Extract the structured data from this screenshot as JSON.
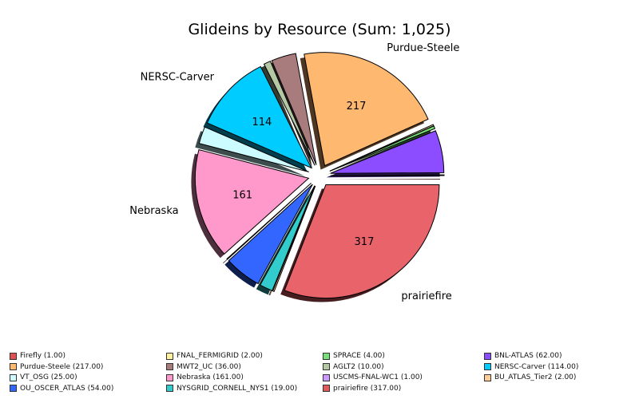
{
  "chart_data": {
    "type": "pie",
    "title": "Glideins by Resource (Sum: 1,025)",
    "slices": [
      {
        "label": "Firefly",
        "value": 1,
        "legend": "Firefly (1.00)",
        "color": "#e05050",
        "outer_label": "",
        "inner_label": ""
      },
      {
        "label": "BNL-ATLAS",
        "value": 62,
        "legend": "BNL-ATLAS (62.00)",
        "color": "#8c4cff",
        "outer_label": "",
        "inner_label": ""
      },
      {
        "label": "SPRACE",
        "value": 4,
        "legend": "SPRACE (4.00)",
        "color": "#78e078",
        "outer_label": "",
        "inner_label": ""
      },
      {
        "label": "FNAL_FERMIGRID",
        "value": 2,
        "legend": "FNAL_FERMIGRID (2.00)",
        "color": "#fff0a0",
        "outer_label": "",
        "inner_label": ""
      },
      {
        "label": "Purdue-Steele",
        "value": 217,
        "legend": "Purdue-Steele (217.00)",
        "color": "#ffb870",
        "outer_label": "Purdue-Steele",
        "inner_label": "217"
      },
      {
        "label": "MWT2_UC",
        "value": 36,
        "legend": "MWT2_UC (36.00)",
        "color": "#a87c7c",
        "outer_label": "",
        "inner_label": ""
      },
      {
        "label": "AGLT2",
        "value": 10,
        "legend": "AGLT2 (10.00)",
        "color": "#b4c8a4",
        "outer_label": "",
        "inner_label": ""
      },
      {
        "label": "NERSC-Carver",
        "value": 114,
        "legend": "NERSC-Carver (114.00)",
        "color": "#00ccff",
        "outer_label": "NERSC-Carver",
        "inner_label": "114"
      },
      {
        "label": "VT_OSG",
        "value": 25,
        "legend": "VT_OSG (25.00)",
        "color": "#ccfcff",
        "outer_label": "",
        "inner_label": ""
      },
      {
        "label": "Nebraska",
        "value": 161,
        "legend": "Nebraska (161.00)",
        "color": "#ff99cc",
        "outer_label": "Nebraska",
        "inner_label": "161"
      },
      {
        "label": "USCMS-FNAL-WC1",
        "value": 1,
        "legend": "USCMS-FNAL-WC1 (1.00)",
        "color": "#cc99ff",
        "outer_label": "",
        "inner_label": ""
      },
      {
        "label": "OU_OSCER_ATLAS",
        "value": 54,
        "legend": "OU_OSCER_ATLAS (54.00)",
        "color": "#3366ff",
        "outer_label": "",
        "inner_label": ""
      },
      {
        "label": "NYSGRID_CORNELL_NYS1",
        "value": 19,
        "legend": "NYSGRID_CORNELL_NYS1 (19.00)",
        "color": "#33cccc",
        "outer_label": "",
        "inner_label": ""
      },
      {
        "label": "BU_ATLAS_Tier2",
        "value": 2,
        "legend": "BU_ATLAS_Tier2 (2.00)",
        "color": "#ffcc99",
        "outer_label": "",
        "inner_label": ""
      },
      {
        "label": "prairiefire",
        "value": 317,
        "legend": "prairiefire (317.00)",
        "color": "#e8636a",
        "outer_label": "prairiefire",
        "inner_label": "317"
      }
    ],
    "legend_order": [
      "Firefly (1.00)",
      "FNAL_FERMIGRID (2.00)",
      "SPRACE (4.00)",
      "BNL-ATLAS (62.00)",
      "Purdue-Steele (217.00)",
      "MWT2_UC (36.00)",
      "AGLT2 (10.00)",
      "NERSC-Carver (114.00)",
      "VT_OSG (25.00)",
      "Nebraska (161.00)",
      "USCMS-FNAL-WC1 (1.00)",
      "BU_ATLAS_Tier2 (2.00)",
      "OU_OSCER_ATLAS (54.00)",
      "NYSGRID_CORNELL_NYS1 (19.00)",
      "prairiefire (317.00)"
    ],
    "legend_colors": [
      "#e05050",
      "#fff0a0",
      "#78e078",
      "#8c4cff",
      "#ffb870",
      "#a87c7c",
      "#b4c8a4",
      "#00ccff",
      "#ccfcff",
      "#ff99cc",
      "#cc99ff",
      "#ffcc99",
      "#3366ff",
      "#33cccc",
      "#e05a5a"
    ],
    "legend_placement": "bottom"
  }
}
